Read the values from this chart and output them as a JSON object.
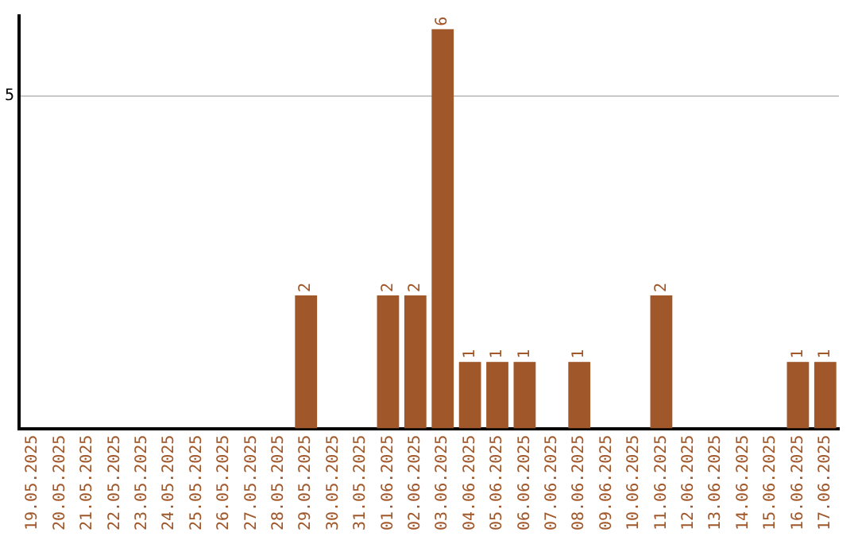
{
  "chart_data": {
    "type": "bar",
    "categories": [
      "19.05.2025",
      "20.05.2025",
      "21.05.2025",
      "22.05.2025",
      "23.05.2025",
      "24.05.2025",
      "25.05.2025",
      "26.05.2025",
      "27.05.2025",
      "28.05.2025",
      "29.05.2025",
      "30.05.2025",
      "31.05.2025",
      "01.06.2025",
      "02.06.2025",
      "03.06.2025",
      "04.06.2025",
      "05.06.2025",
      "06.06.2025",
      "07.06.2025",
      "08.06.2025",
      "09.06.2025",
      "10.06.2025",
      "11.06.2025",
      "12.06.2025",
      "13.06.2025",
      "14.06.2025",
      "15.06.2025",
      "16.06.2025",
      "17.06.2025"
    ],
    "values": [
      0,
      0,
      0,
      0,
      0,
      0,
      0,
      0,
      0,
      0,
      2,
      0,
      0,
      2,
      2,
      6,
      1,
      1,
      1,
      0,
      1,
      0,
      0,
      2,
      0,
      0,
      0,
      0,
      1,
      1
    ],
    "value_labels": [
      null,
      null,
      null,
      null,
      null,
      null,
      null,
      null,
      null,
      null,
      "2",
      null,
      null,
      "2",
      "2",
      "6",
      "1",
      "1",
      "1",
      null,
      "1",
      null,
      null,
      "2",
      null,
      null,
      null,
      null,
      "1",
      "1"
    ],
    "color": "#a0572a",
    "ylim": [
      0,
      6.2
    ],
    "yticks": [
      5
    ],
    "grid": "y",
    "legend": false
  }
}
